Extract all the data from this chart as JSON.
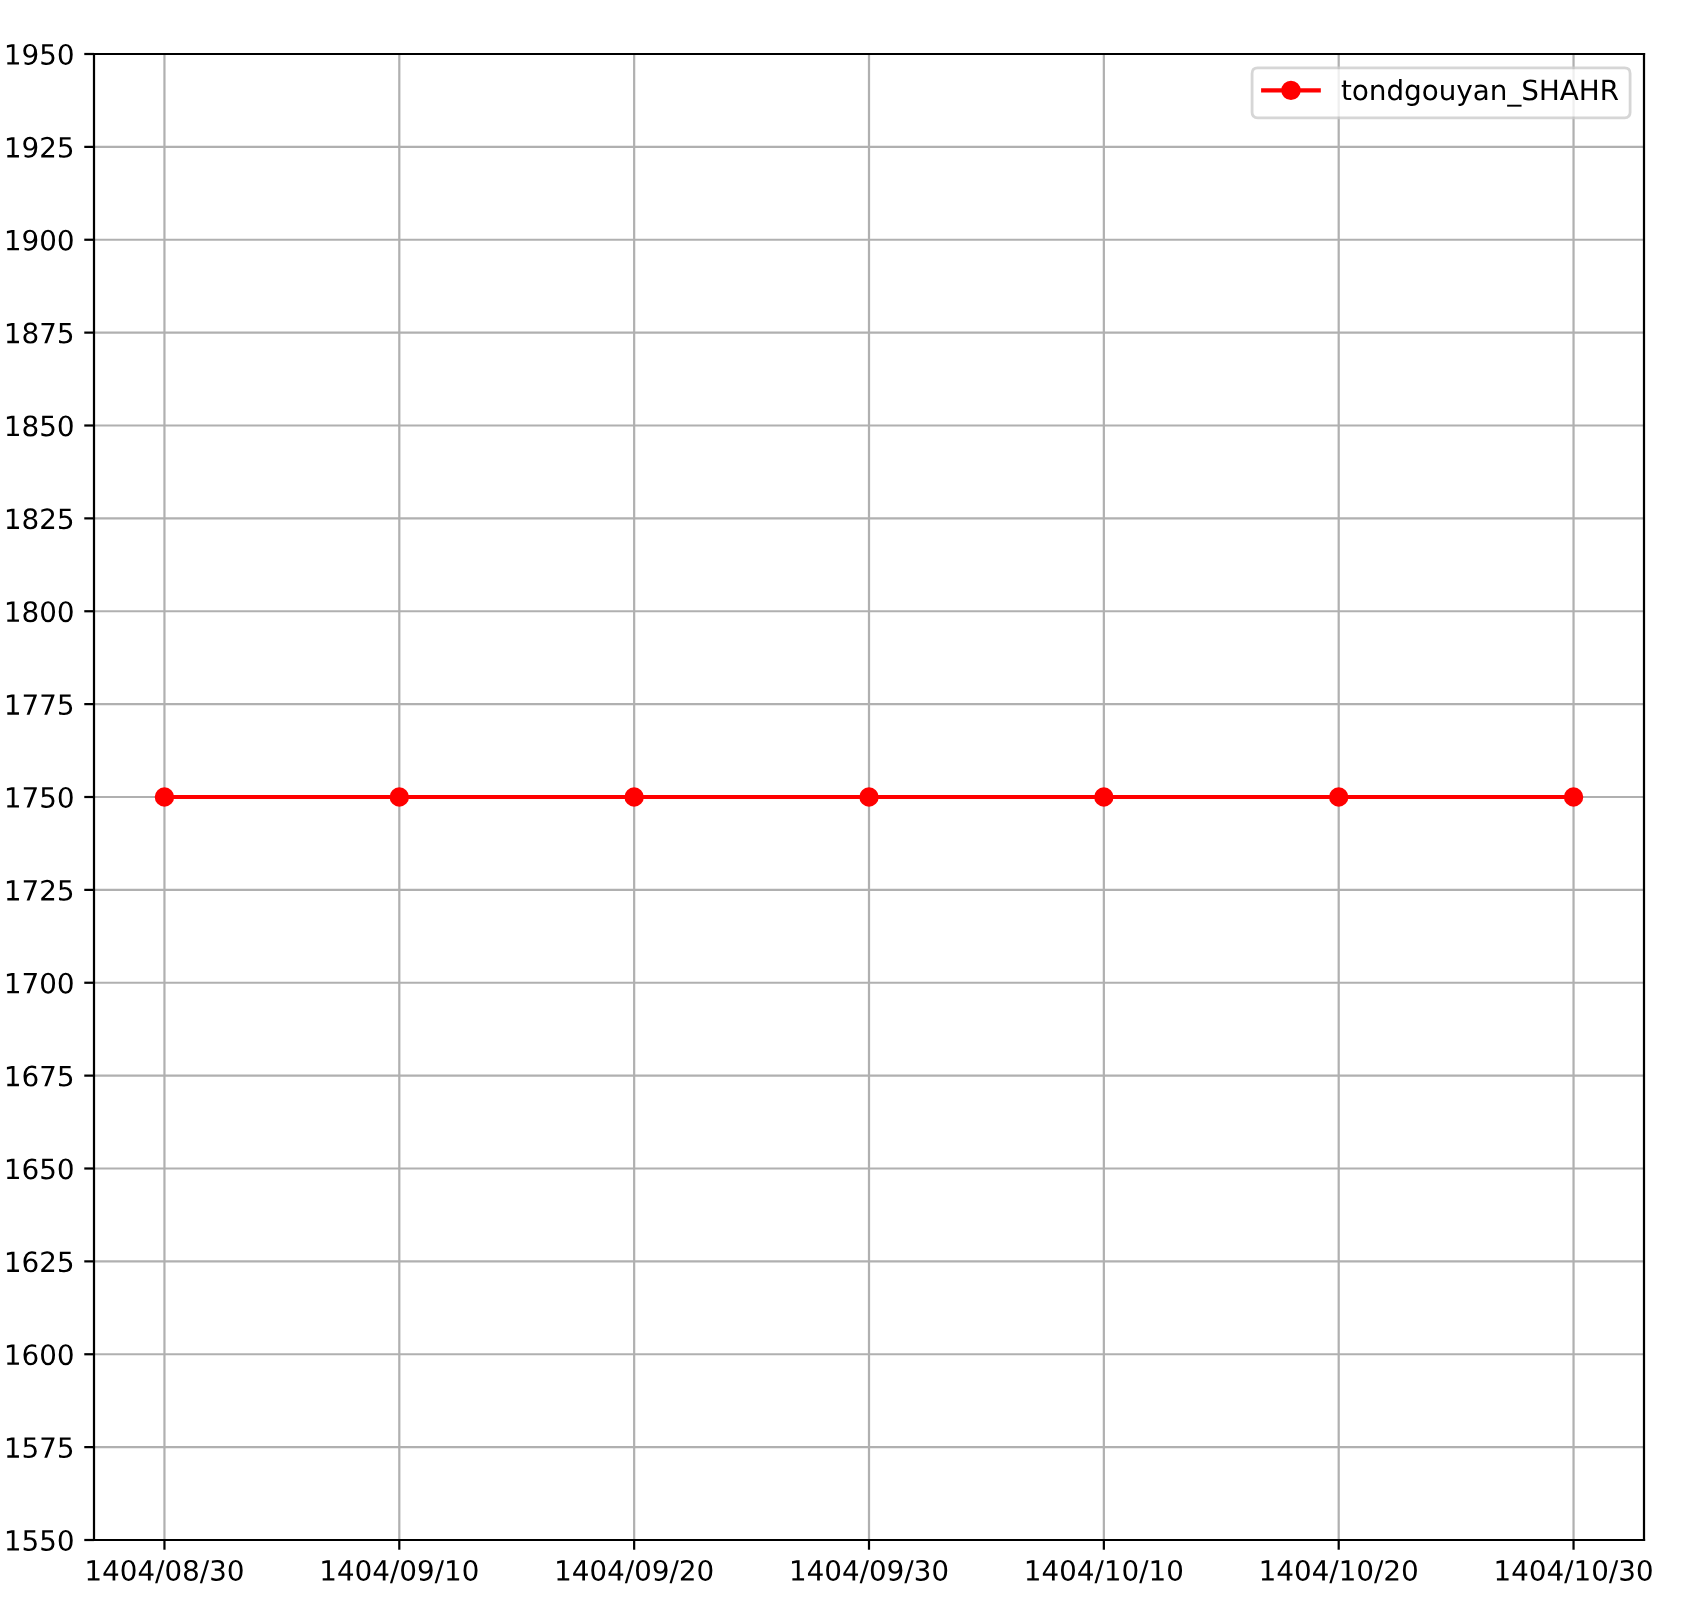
{
  "chart_data": {
    "type": "line",
    "categories": [
      "1404/08/30",
      "1404/09/10",
      "1404/09/20",
      "1404/09/30",
      "1404/10/10",
      "1404/10/20",
      "1404/10/30"
    ],
    "series": [
      {
        "name": "tondgouyan_SHAHR",
        "color": "#ff0000",
        "values": [
          1750,
          1750,
          1750,
          1750,
          1750,
          1750,
          1750
        ]
      }
    ],
    "ylim": [
      1550,
      1950
    ],
    "yticks": [
      1550,
      1575,
      1600,
      1625,
      1650,
      1675,
      1700,
      1725,
      1750,
      1775,
      1800,
      1825,
      1850,
      1875,
      1900,
      1925,
      1950
    ],
    "grid": true,
    "legend": "top right",
    "marker": "circle",
    "line_style": "solid"
  }
}
